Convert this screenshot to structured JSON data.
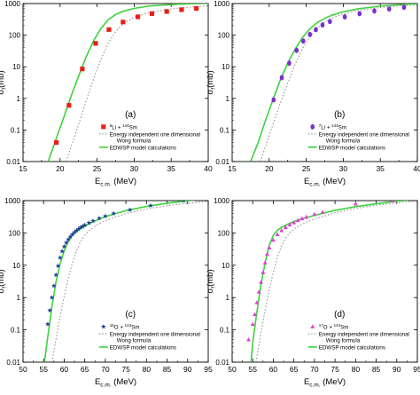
{
  "chart_data": [
    {
      "type": "line",
      "panel_label": "(a)",
      "xlabel_main": "E",
      "xlabel_sub": "c.m.",
      "xlabel_unit": " (MeV)",
      "ylabel_main": "σ",
      "ylabel_sub": "f",
      "ylabel_unit": "(mb)",
      "xlim": [
        15,
        40
      ],
      "ylim": [
        0.01,
        1000
      ],
      "yscale": "log",
      "xticks": [
        "15",
        "20",
        "25",
        "30",
        "35",
        "40"
      ],
      "yticks": [
        "0.01",
        "0.1",
        "1",
        "10",
        "100",
        "1000"
      ],
      "legend_position": "bottom-right",
      "legend": {
        "data_pre": "",
        "data_sup1": "6",
        "data_mid": "Li + ",
        "data_sup2": "144",
        "data_post": "Sm",
        "wong_line1": "Energy independent one dimensional",
        "wong_line2": "Wong formula",
        "edwsp": "EDWSP model calculations"
      },
      "marker": {
        "shape": "square",
        "color": "#e8211a"
      },
      "series": [
        {
          "kind": "data",
          "x": [
            19.5,
            21.2,
            23.0,
            24.8,
            26.6,
            28.5,
            30.5,
            32.4,
            34.4,
            36.4,
            38.4
          ],
          "y": [
            0.04,
            0.6,
            8.5,
            55,
            150,
            260,
            380,
            480,
            560,
            640,
            700
          ]
        },
        {
          "kind": "wong",
          "x": [
            20.8,
            21.5,
            22.5,
            23.5,
            24.5,
            25.5,
            26.5,
            27.5,
            28.5,
            30,
            32,
            35,
            38,
            40
          ],
          "y": [
            0.01,
            0.03,
            0.15,
            0.8,
            4,
            17,
            55,
            130,
            230,
            370,
            520,
            680,
            790,
            850
          ]
        },
        {
          "kind": "edwsp",
          "x": [
            18.4,
            19.5,
            20.5,
            21.5,
            22.5,
            23.5,
            24.5,
            25.5,
            26.5,
            27.5,
            28.5,
            30,
            32,
            35,
            38,
            40
          ],
          "y": [
            0.01,
            0.055,
            0.25,
            1.2,
            5,
            20,
            65,
            160,
            310,
            450,
            570,
            700,
            830,
            930,
            990,
            1020
          ]
        }
      ]
    },
    {
      "type": "line",
      "panel_label": "(b)",
      "xlabel_main": "E",
      "xlabel_sub": "c.m.",
      "xlabel_unit": " (MeV)",
      "ylabel_main": "σ",
      "ylabel_sub": "f",
      "ylabel_unit": "(mb)",
      "xlim": [
        15,
        40
      ],
      "ylim": [
        0.01,
        1000
      ],
      "yscale": "log",
      "xticks": [
        "15",
        "20",
        "25",
        "30",
        "35",
        "40"
      ],
      "yticks": [
        "0.01",
        "0.1",
        "1",
        "10",
        "100",
        "1000"
      ],
      "legend_position": "bottom-right",
      "legend": {
        "data_pre": "",
        "data_sup1": "7",
        "data_mid": "Li + ",
        "data_sup2": "144",
        "data_post": "Sm",
        "wong_line1": "Energy independent one dimensional",
        "wong_line2": "Wong formula",
        "edwsp": "EDWSP model calculations"
      },
      "marker": {
        "shape": "circle",
        "color": "#7b2fd0"
      },
      "series": [
        {
          "kind": "data",
          "x": [
            20.6,
            21.7,
            22.7,
            23.7,
            24.6,
            25.5,
            26.3,
            27.2,
            28.2,
            30.2,
            32.2,
            34.2,
            36.2,
            38.2
          ],
          "y": [
            0.9,
            4.5,
            13,
            33,
            65,
            105,
            150,
            210,
            270,
            380,
            480,
            580,
            670,
            760
          ]
        },
        {
          "kind": "wong",
          "x": [
            18.8,
            19.5,
            20.5,
            21.5,
            22.5,
            23.5,
            24.5,
            25.5,
            26.5,
            27.5,
            28.5,
            30,
            32,
            35,
            38,
            40
          ],
          "y": [
            0.01,
            0.03,
            0.15,
            0.7,
            3,
            12,
            38,
            90,
            170,
            260,
            350,
            470,
            600,
            750,
            860,
            920
          ]
        },
        {
          "kind": "edwsp",
          "x": [
            17.5,
            18.5,
            19.5,
            20.5,
            21.5,
            22.5,
            23.5,
            24.5,
            25.5,
            26.5,
            27.5,
            28.5,
            30,
            32,
            35,
            38,
            40
          ],
          "y": [
            0.01,
            0.04,
            0.2,
            0.9,
            3.8,
            13,
            36,
            85,
            160,
            250,
            340,
            430,
            550,
            680,
            830,
            930,
            990
          ]
        }
      ]
    },
    {
      "type": "line",
      "panel_label": "(c)",
      "xlabel_main": "E",
      "xlabel_sub": "c.m.",
      "xlabel_unit": " (MeV)",
      "ylabel_main": "σ",
      "ylabel_sub": "f",
      "ylabel_unit": "(mb)",
      "xlim": [
        50,
        95
      ],
      "ylim": [
        0.01,
        1000
      ],
      "yscale": "log",
      "xticks": [
        "50",
        "55",
        "60",
        "65",
        "70",
        "75",
        "80",
        "85",
        "90",
        "95"
      ],
      "yticks": [
        "0.01",
        "0.1",
        "1",
        "10",
        "100",
        "1000"
      ],
      "legend_position": "bottom-right",
      "legend": {
        "data_pre": "",
        "data_sup1": "16",
        "data_mid": "O + ",
        "data_sup2": "144",
        "data_post": "Sm",
        "wong_line1": "Energy independent one dimensional",
        "wong_line2": "Wong formula",
        "edwsp": "EDWSP model calculations"
      },
      "marker": {
        "shape": "star",
        "color": "#1f3f99"
      },
      "series": [
        {
          "kind": "data",
          "x": [
            56.0,
            56.5,
            57.0,
            57.5,
            58.0,
            58.5,
            59.0,
            59.5,
            60.0,
            60.5,
            61.0,
            61.5,
            62.0,
            62.5,
            63.0,
            63.5,
            64.0,
            64.5,
            65.0,
            66.0,
            67.0,
            68.5,
            70.0,
            72.0,
            76.0,
            81.0,
            89.0
          ],
          "y": [
            0.15,
            0.4,
            1.0,
            2.3,
            5,
            9.5,
            17,
            27,
            38,
            50,
            63,
            76,
            90,
            105,
            118,
            132,
            148,
            160,
            175,
            205,
            235,
            285,
            330,
            400,
            520,
            700,
            1000
          ]
        },
        {
          "kind": "wong",
          "x": [
            57.0,
            58.0,
            59.0,
            60.0,
            61.0,
            62.0,
            63.0,
            64.0,
            65.0,
            66.0,
            68.0,
            70.0,
            75.0,
            80.0,
            85.0,
            90.0,
            95.0
          ],
          "y": [
            0.01,
            0.05,
            0.25,
            1.1,
            4,
            12,
            28,
            55,
            85,
            115,
            180,
            240,
            400,
            550,
            700,
            830,
            950
          ]
        },
        {
          "kind": "edwsp",
          "x": [
            55.2,
            56.0,
            57.0,
            58.0,
            59.0,
            60.0,
            61.0,
            62.0,
            63.0,
            64.0,
            65.0,
            67.0,
            70.0,
            75.0,
            80.0,
            85.0,
            90.0,
            95.0
          ],
          "y": [
            0.01,
            0.06,
            0.5,
            3,
            11,
            28,
            55,
            85,
            110,
            135,
            160,
            220,
            320,
            490,
            660,
            830,
            990,
            1150
          ]
        }
      ]
    },
    {
      "type": "line",
      "panel_label": "(d)",
      "xlabel_main": "E",
      "xlabel_sub": "c.m.",
      "xlabel_unit": " (MeV)",
      "ylabel_main": "σ",
      "ylabel_sub": "f",
      "ylabel_unit": "(mb)",
      "xlim": [
        50,
        95
      ],
      "ylim": [
        0.01,
        1000
      ],
      "yscale": "log",
      "xticks": [
        "50",
        "55",
        "60",
        "65",
        "70",
        "75",
        "80",
        "85",
        "90",
        "95"
      ],
      "yticks": [
        "0.01",
        "0.1",
        "1",
        "10",
        "100",
        "1000"
      ],
      "legend_position": "bottom-right",
      "legend": {
        "data_pre": "",
        "data_sup1": "17",
        "data_mid": "O + ",
        "data_sup2": "144",
        "data_post": "Sm",
        "wong_line1": "Energy independent one dimensional",
        "wong_line2": "Wong formula",
        "edwsp": "EDWSP model calculations"
      },
      "marker": {
        "shape": "triangle",
        "color": "#e040d8"
      },
      "series": [
        {
          "kind": "data",
          "x": [
            54.0,
            55.0,
            55.5,
            56.0,
            56.5,
            57.0,
            57.5,
            58.0,
            58.5,
            59.0,
            60.0,
            61.0,
            62.0,
            63.0,
            64.0,
            65.0,
            66.0,
            67.0,
            68.0,
            70.0,
            72.0,
            80.0,
            89.0
          ],
          "y": [
            0.05,
            0.15,
            0.3,
            0.7,
            1.5,
            3,
            6,
            12,
            22,
            35,
            60,
            90,
            120,
            150,
            180,
            210,
            245,
            280,
            310,
            380,
            440,
            800,
            1000
          ]
        },
        {
          "kind": "wong",
          "x": [
            55.8,
            57.0,
            58.0,
            59.0,
            60.0,
            61.0,
            62.0,
            63.0,
            64.0,
            65.0,
            66.0,
            68.0,
            70.0,
            75.0,
            80.0,
            85.0,
            90.0,
            95.0
          ],
          "y": [
            0.01,
            0.08,
            0.4,
            1.8,
            6,
            18,
            40,
            70,
            100,
            130,
            160,
            215,
            270,
            420,
            570,
            720,
            850,
            980
          ]
        },
        {
          "kind": "edwsp",
          "x": [
            54.6,
            55.0,
            56.0,
            57.0,
            58.0,
            59.0,
            60.0,
            61.0,
            62.0,
            64.0,
            66.0,
            70.0,
            75.0,
            80.0,
            85.0,
            90.0,
            95.0
          ],
          "y": [
            0.01,
            0.04,
            0.35,
            2.5,
            12,
            40,
            85,
            120,
            150,
            200,
            250,
            350,
            500,
            650,
            800,
            960,
            1100
          ]
        }
      ]
    }
  ]
}
